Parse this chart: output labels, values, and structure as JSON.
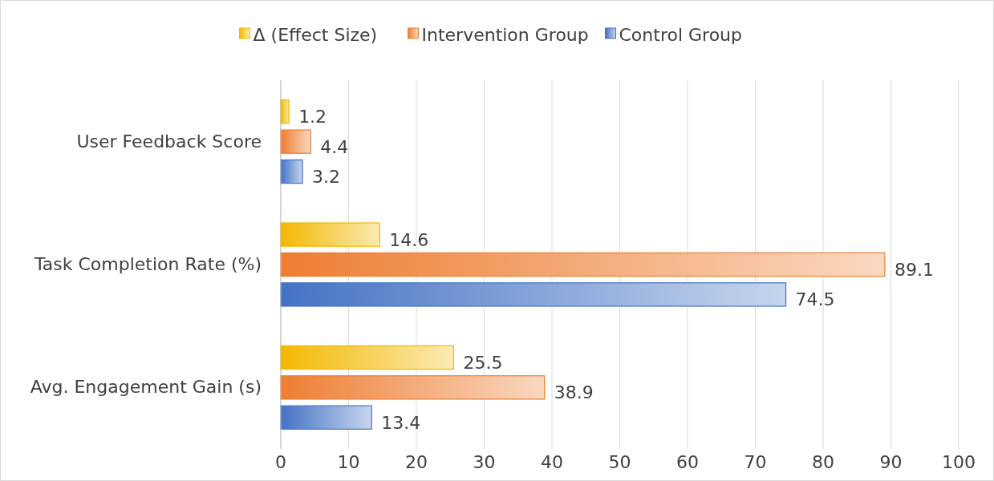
{
  "chart_data": {
    "type": "bar",
    "orientation": "horizontal",
    "categories": [
      "User Feedback Score",
      "Task Completion Rate (%)",
      "Avg. Engagement Gain (s)"
    ],
    "series": [
      {
        "name": "Δ (Effect Size)",
        "color": "#f2b800",
        "values": [
          1.2,
          14.6,
          25.5
        ]
      },
      {
        "name": "Intervention Group",
        "color": "#ed7d31",
        "values": [
          4.4,
          89.1,
          38.9
        ]
      },
      {
        "name": "Control Group",
        "color": "#4472c4",
        "values": [
          3.2,
          74.5,
          13.4
        ]
      }
    ],
    "xlim": [
      0,
      100
    ],
    "xticks": [
      0,
      10,
      20,
      30,
      40,
      50,
      60,
      70,
      80,
      90,
      100
    ],
    "grid": "x",
    "legend": "top",
    "data_labels": true
  }
}
